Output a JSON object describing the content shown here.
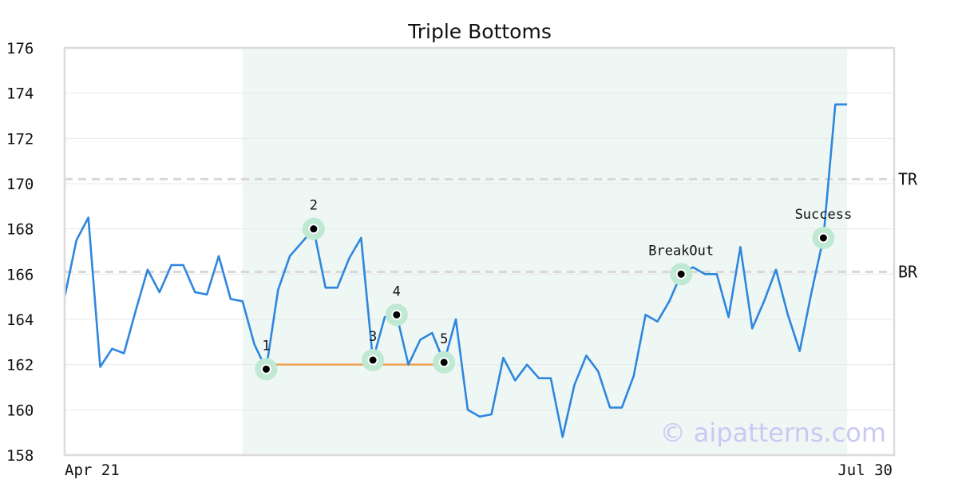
{
  "chart_data": {
    "type": "line",
    "title": "Triple Bottoms",
    "xlabel": "",
    "ylabel": "",
    "x_tick_labels": [
      "Apr 21",
      "Jul 30"
    ],
    "ylim": [
      158,
      176
    ],
    "yticks": [
      158,
      160,
      162,
      164,
      166,
      168,
      170,
      172,
      174,
      176
    ],
    "grid": "horizontal",
    "series": [
      {
        "color": "#2e86de",
        "values": [
          165.0,
          167.5,
          168.5,
          161.9,
          162.7,
          162.5,
          164.4,
          166.2,
          165.2,
          166.4,
          166.4,
          165.2,
          165.1,
          166.8,
          164.9,
          164.8,
          162.9,
          161.8,
          165.3,
          166.8,
          167.4,
          168.0,
          165.4,
          165.4,
          166.7,
          167.6,
          162.2,
          164.1,
          164.2,
          162.0,
          163.1,
          163.4,
          162.1,
          164.0,
          160.0,
          159.7,
          159.8,
          162.3,
          161.3,
          162.0,
          161.4,
          161.4,
          158.8,
          161.1,
          162.4,
          161.7,
          160.1,
          160.1,
          161.5,
          164.2,
          163.9,
          164.8,
          166.0,
          166.3,
          166.0,
          166.0,
          164.1,
          167.2,
          163.6,
          164.8,
          166.2,
          164.2,
          162.6,
          165.2,
          167.6,
          173.5,
          173.5
        ]
      }
    ],
    "pattern_region": {
      "start_index": 15,
      "end_index": 66,
      "color": "#eef7f3"
    },
    "support_line": {
      "start_index": 17,
      "end_index": 32,
      "value": 162.0,
      "color": "#f0a050"
    },
    "levels": [
      {
        "label": "TR",
        "value": 170.2
      },
      {
        "label": "BR",
        "value": 166.1
      }
    ],
    "points": [
      {
        "label": "1",
        "index": 17,
        "value": 161.8
      },
      {
        "label": "2",
        "index": 21,
        "value": 168.0
      },
      {
        "label": "3",
        "index": 26,
        "value": 162.2
      },
      {
        "label": "4",
        "index": 28,
        "value": 164.2
      },
      {
        "label": "5",
        "index": 32,
        "value": 162.1
      },
      {
        "label": "BreakOut",
        "index": 52,
        "value": 166.0
      },
      {
        "label": "Success",
        "index": 64,
        "value": 167.6
      }
    ],
    "watermark": "© aipatterns.com"
  }
}
